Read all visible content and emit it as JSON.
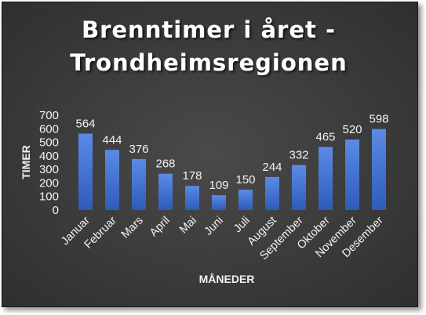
{
  "chart_data": {
    "type": "bar",
    "title_line1": "Brenntimer i året -",
    "title_line2": "Trondheimsregionen",
    "xlabel": "MÅNEDER",
    "ylabel": "TIMER",
    "ylim": [
      0,
      700
    ],
    "yticks": [
      0,
      100,
      200,
      300,
      400,
      500,
      600,
      700
    ],
    "grid": false,
    "legend": "none",
    "categories": [
      "Januar",
      "Februar",
      "Mars",
      "April",
      "Mai",
      "Juni",
      "Juli",
      "August",
      "September",
      "Oktober",
      "November",
      "Desember"
    ],
    "values": [
      564,
      444,
      376,
      268,
      178,
      109,
      150,
      244,
      332,
      465,
      520,
      598
    ],
    "colors": {
      "bar_top": "#5b8be6",
      "bar_bottom": "#2f5bb8",
      "background": "#3b3b3b",
      "text": "#f2f2f2"
    }
  }
}
